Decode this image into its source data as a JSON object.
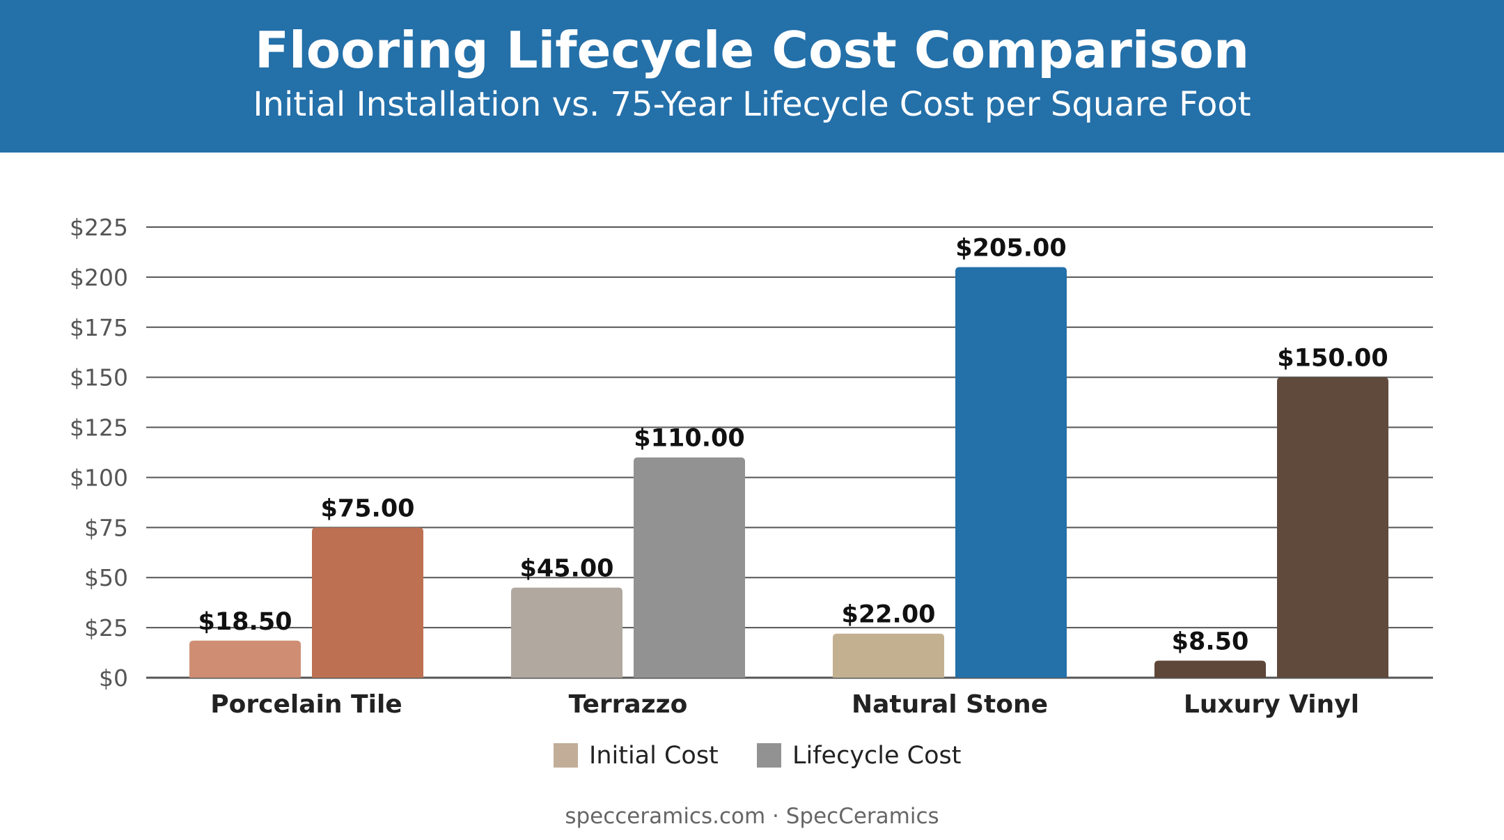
{
  "header": {
    "title": "Flooring Lifecycle Cost Comparison",
    "subtitle": "Initial Installation vs. 75-Year Lifecycle Cost per Square Foot"
  },
  "footer": {
    "text": "specceramics.com · SpecCeramics"
  },
  "colors": {
    "header_bg": "#2470a9",
    "grid": "#555555",
    "legend_initial": "#c1ad98",
    "legend_lifecycle": "#929292"
  },
  "chart_data": {
    "type": "bar",
    "categories": [
      "Porcelain Tile",
      "Terrazzo",
      "Natural Stone",
      "Luxury Vinyl"
    ],
    "series": [
      {
        "name": "Initial Cost",
        "values": [
          18.5,
          45,
          22,
          8.5
        ],
        "labels": [
          "$18.50",
          "$45.00",
          "$22.00",
          "$8.50"
        ],
        "colors": [
          "#cf8e73",
          "#b1a89f",
          "#c3b091",
          "#5e4638"
        ]
      },
      {
        "name": "Lifecycle Cost",
        "values": [
          75,
          110,
          205,
          150
        ],
        "labels": [
          "$75.00",
          "$110.00",
          "$205.00",
          "$150.00"
        ],
        "colors": [
          "#bd7152",
          "#929292",
          "#2470a9",
          "#604a3c"
        ]
      }
    ],
    "yticks": [
      0,
      25,
      50,
      75,
      100,
      125,
      150,
      175,
      200,
      225
    ],
    "ytick_labels": [
      "$0",
      "$25",
      "$50",
      "$75",
      "$100",
      "$125",
      "$150",
      "$175",
      "$200",
      "$225"
    ],
    "ylim": [
      0,
      225
    ],
    "grid": true,
    "legend_position": "bottom-center",
    "legend": [
      {
        "label": "Initial Cost",
        "color": "#c1ad98"
      },
      {
        "label": "Lifecycle Cost",
        "color": "#929292"
      }
    ]
  }
}
